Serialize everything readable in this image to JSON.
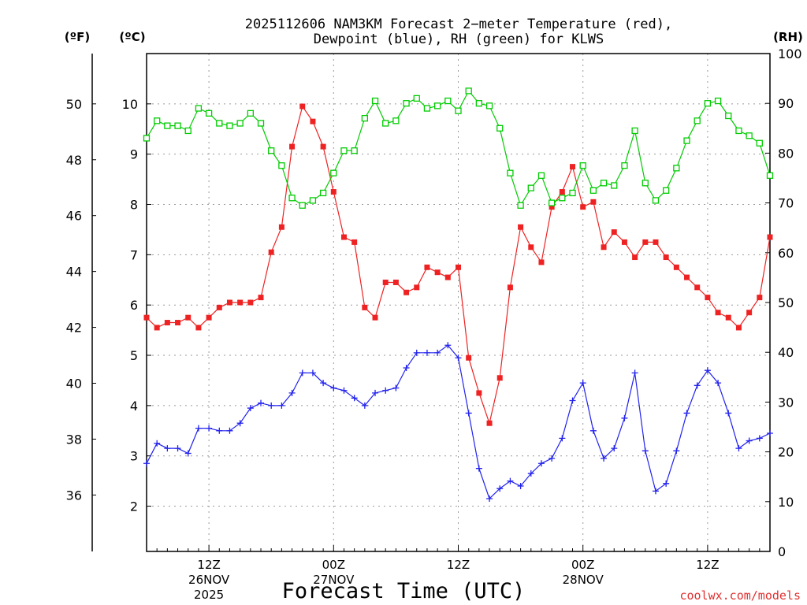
{
  "header": {
    "title_line1": "2025112606 NAM3KM Forecast 2−meter Temperature (red),",
    "title_line2": "Dewpoint (blue), RH (green) for KLWS"
  },
  "units": {
    "fahrenheit": "(ºF)",
    "celsius": "(ºC)",
    "rh": "(RH)"
  },
  "credit": "coolwx.com/models",
  "colors": {
    "temperature": "#ee2222",
    "dewpoint": "#2222ee",
    "rh": "#00cc00",
    "grid": "#9a9a9a"
  },
  "chart_data": {
    "type": "line",
    "title": "2025112606 NAM3KM Forecast 2-meter Temperature (red), Dewpoint (blue), RH (green) for KLWS",
    "xlabel": "Forecast Time (UTC)",
    "x_unit": "hours since 2025-11-26 06Z",
    "xlim": [
      0,
      60
    ],
    "celsius_range": [
      1.1,
      11.0
    ],
    "fahrenheit_range": [
      33.98,
      51.8
    ],
    "rh_range": [
      0,
      100
    ],
    "celsius_ticks": [
      "2",
      "3",
      "4",
      "5",
      "6",
      "7",
      "8",
      "9",
      "10"
    ],
    "fahrenheit_ticks": [
      "36",
      "38",
      "40",
      "42",
      "44",
      "46",
      "48",
      "50"
    ],
    "rh_ticks": [
      "0",
      "10",
      "20",
      "30",
      "40",
      "50",
      "60",
      "70",
      "80",
      "90",
      "100"
    ],
    "x_ticks": [
      {
        "hour": 6,
        "label": "12Z",
        "date": "26NOV",
        "year": "2025"
      },
      {
        "hour": 18,
        "label": "00Z",
        "date": "27NOV",
        "year": ""
      },
      {
        "hour": 30,
        "label": "12Z",
        "date": "",
        "year": ""
      },
      {
        "hour": 42,
        "label": "00Z",
        "date": "28NOV",
        "year": ""
      },
      {
        "hour": 54,
        "label": "12Z",
        "date": "",
        "year": ""
      }
    ],
    "series": [
      {
        "name": "2-meter Temperature",
        "unit": "°C",
        "axis": "celsius",
        "color": "#ee2222",
        "marker": "filled-square",
        "x": [
          0,
          1,
          2,
          3,
          4,
          5,
          6,
          7,
          8,
          9,
          10,
          11,
          12,
          13,
          14,
          15,
          16,
          17,
          18,
          19,
          20,
          21,
          22,
          23,
          24,
          25,
          26,
          27,
          28,
          29,
          30,
          31,
          32,
          33,
          34,
          35,
          36,
          37,
          38,
          39,
          40,
          41,
          42,
          43,
          44,
          45,
          46,
          47,
          48,
          49,
          50,
          51,
          52,
          53,
          54,
          55,
          56,
          57,
          58,
          59,
          60
        ],
        "values": [
          5.75,
          5.55,
          5.65,
          5.65,
          5.75,
          5.55,
          5.75,
          5.95,
          6.05,
          6.05,
          6.05,
          6.15,
          7.05,
          7.55,
          9.15,
          9.95,
          9.65,
          9.15,
          8.25,
          7.35,
          7.25,
          5.95,
          5.75,
          6.45,
          6.45,
          6.25,
          6.35,
          6.75,
          6.65,
          6.55,
          6.75,
          4.95,
          4.25,
          3.65,
          4.55,
          6.35,
          7.55,
          7.15,
          6.85,
          7.95,
          8.25,
          8.75,
          7.95,
          8.05,
          7.15,
          7.45,
          7.25,
          6.95,
          7.25,
          7.25,
          6.95,
          6.75,
          6.55,
          6.35,
          6.15,
          5.85,
          5.75,
          5.55,
          5.85,
          6.15,
          7.35
        ]
      },
      {
        "name": "Dewpoint",
        "unit": "°C",
        "axis": "celsius",
        "color": "#2222ee",
        "marker": "plus",
        "x": [
          0,
          1,
          2,
          3,
          4,
          5,
          6,
          7,
          8,
          9,
          10,
          11,
          12,
          13,
          14,
          15,
          16,
          17,
          18,
          19,
          20,
          21,
          22,
          23,
          24,
          25,
          26,
          27,
          28,
          29,
          30,
          31,
          32,
          33,
          34,
          35,
          36,
          37,
          38,
          39,
          40,
          41,
          42,
          43,
          44,
          45,
          46,
          47,
          48,
          49,
          50,
          51,
          52,
          53,
          54,
          55,
          56,
          57,
          58,
          59,
          60
        ],
        "values": [
          2.85,
          3.25,
          3.15,
          3.15,
          3.05,
          3.55,
          3.55,
          3.5,
          3.5,
          3.65,
          3.95,
          4.05,
          4.0,
          4.0,
          4.25,
          4.65,
          4.65,
          4.45,
          4.35,
          4.3,
          4.15,
          4.0,
          4.25,
          4.3,
          4.35,
          4.75,
          5.05,
          5.05,
          5.05,
          5.2,
          4.95,
          3.85,
          2.75,
          2.15,
          2.35,
          2.5,
          2.4,
          2.65,
          2.85,
          2.95,
          3.35,
          4.1,
          4.45,
          3.5,
          2.95,
          3.15,
          3.75,
          4.65,
          3.1,
          2.3,
          2.45,
          3.1,
          3.85,
          4.4,
          4.7,
          4.45,
          3.85,
          3.15,
          3.3,
          3.35,
          3.45
        ]
      },
      {
        "name": "Relative Humidity",
        "unit": "%",
        "axis": "rh",
        "color": "#00cc00",
        "marker": "open-square",
        "x": [
          0,
          1,
          2,
          3,
          4,
          5,
          6,
          7,
          8,
          9,
          10,
          11,
          12,
          13,
          14,
          15,
          16,
          17,
          18,
          19,
          20,
          21,
          22,
          23,
          24,
          25,
          26,
          27,
          28,
          29,
          30,
          31,
          32,
          33,
          34,
          35,
          36,
          37,
          38,
          39,
          40,
          41,
          42,
          43,
          44,
          45,
          46,
          47,
          48,
          49,
          50,
          51,
          52,
          53,
          54,
          55,
          56,
          57,
          58,
          59,
          60
        ],
        "values": [
          83,
          86.5,
          85.5,
          85.5,
          84.5,
          89,
          88,
          86,
          85.5,
          86,
          88,
          86,
          80.5,
          77.5,
          71,
          69.5,
          70.5,
          72,
          76,
          80.5,
          80.5,
          87,
          90.5,
          86,
          86.5,
          90,
          91,
          89,
          89.5,
          90.5,
          88.5,
          92.5,
          90,
          89.5,
          85,
          76,
          69.5,
          73,
          75.5,
          70,
          71,
          72,
          77.5,
          72.5,
          74,
          73.5,
          77.5,
          84.5,
          74,
          70.5,
          72.5,
          77,
          82.5,
          86.5,
          90,
          90.5,
          87.5,
          84.5,
          83.5,
          82,
          75.5
        ]
      }
    ]
  }
}
